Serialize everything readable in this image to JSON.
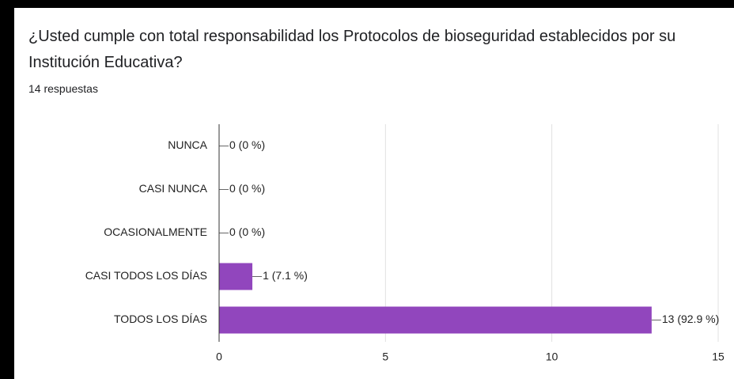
{
  "chart_data": {
    "type": "bar",
    "orientation": "horizontal",
    "title": "¿Usted cumple con total responsabilidad los Protocolos de bioseguridad establecidos por su Institución Educativa?",
    "subtitle": "14 respuestas",
    "categories": [
      "NUNCA",
      "CASI NUNCA",
      "OCASIONALMENTE",
      "CASI TODOS LOS DÍAS",
      "TODOS LOS DÍAS"
    ],
    "values": [
      0,
      0,
      0,
      1,
      13
    ],
    "value_labels": [
      "0 (0 %)",
      "0 (0 %)",
      "0 (0 %)",
      "1 (7.1 %)",
      "13 (92.9 %)"
    ],
    "color": "#9146bd",
    "xlim": [
      0,
      15
    ],
    "xticks": [
      0,
      5,
      10,
      15
    ],
    "grid": true
  }
}
